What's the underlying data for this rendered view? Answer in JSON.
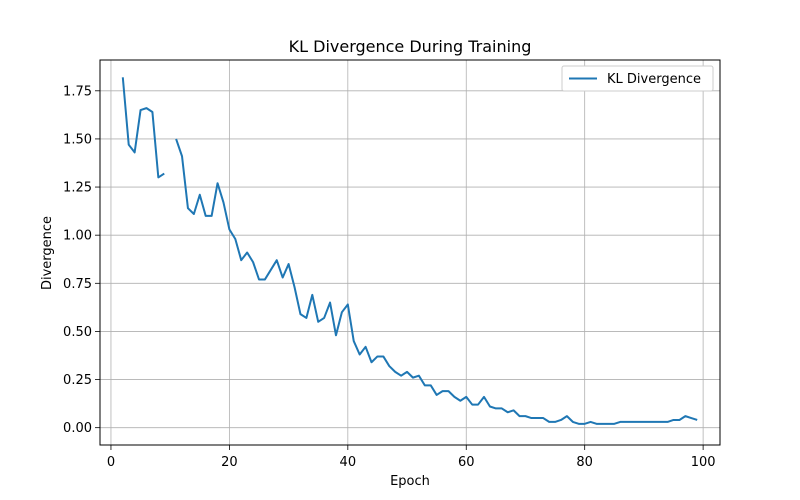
{
  "chart_data": {
    "type": "line",
    "title": "KL Divergence During Training",
    "xlabel": "Epoch",
    "ylabel": "Divergence",
    "xlim": [
      -1.85,
      102.85
    ],
    "ylim": [
      -0.09,
      1.91
    ],
    "x_ticks": [
      0,
      20,
      40,
      60,
      80,
      100
    ],
    "y_ticks": [
      0.0,
      0.25,
      0.5,
      0.75,
      1.0,
      1.25,
      1.5,
      1.75
    ],
    "x_tick_labels": [
      "0",
      "20",
      "40",
      "60",
      "80",
      "100"
    ],
    "y_tick_labels": [
      "0.00",
      "0.25",
      "0.50",
      "0.75",
      "1.00",
      "1.25",
      "1.50",
      "1.75"
    ],
    "grid": true,
    "legend_position": "top-right",
    "color": "#1f77b4",
    "series": [
      {
        "name": "KL Divergence",
        "segments": [
          {
            "x": [
              2,
              3,
              4,
              5,
              6,
              7,
              8,
              9
            ],
            "y": [
              1.82,
              1.47,
              1.43,
              1.65,
              1.66,
              1.64,
              1.3,
              1.32
            ]
          },
          {
            "x": [
              11,
              12,
              13,
              14,
              15,
              16,
              17,
              18,
              19,
              20,
              21,
              22,
              23,
              24,
              25,
              26,
              27,
              28,
              29,
              30,
              31,
              32,
              33,
              34,
              35,
              36,
              37,
              38,
              39,
              40,
              41,
              42,
              43,
              44,
              45,
              46,
              47,
              48,
              49,
              50,
              51,
              52,
              53,
              54,
              55,
              56,
              57,
              58,
              59,
              60,
              61,
              62,
              63,
              64,
              65,
              66,
              67,
              68,
              69,
              70,
              71,
              72,
              73,
              74,
              75,
              76,
              77,
              78,
              79,
              80,
              81,
              82,
              83,
              84,
              85,
              86,
              87,
              88,
              89,
              90,
              91,
              92,
              93,
              94,
              95,
              96,
              97,
              98,
              99
            ],
            "y": [
              1.5,
              1.41,
              1.14,
              1.11,
              1.21,
              1.1,
              1.1,
              1.27,
              1.17,
              1.03,
              0.98,
              0.87,
              0.91,
              0.86,
              0.77,
              0.77,
              0.82,
              0.87,
              0.78,
              0.85,
              0.73,
              0.59,
              0.57,
              0.69,
              0.55,
              0.57,
              0.65,
              0.48,
              0.6,
              0.64,
              0.45,
              0.38,
              0.42,
              0.34,
              0.37,
              0.37,
              0.32,
              0.29,
              0.27,
              0.29,
              0.26,
              0.27,
              0.22,
              0.22,
              0.17,
              0.19,
              0.19,
              0.16,
              0.14,
              0.16,
              0.12,
              0.12,
              0.16,
              0.11,
              0.1,
              0.1,
              0.08,
              0.09,
              0.06,
              0.06,
              0.05,
              0.05,
              0.05,
              0.03,
              0.03,
              0.04,
              0.06,
              0.03,
              0.02,
              0.02,
              0.03,
              0.02,
              0.02,
              0.02,
              0.02,
              0.03,
              0.03,
              0.03,
              0.03,
              0.03,
              0.03,
              0.03,
              0.03,
              0.03,
              0.04,
              0.04,
              0.06,
              0.05,
              0.04
            ]
          }
        ]
      }
    ]
  }
}
